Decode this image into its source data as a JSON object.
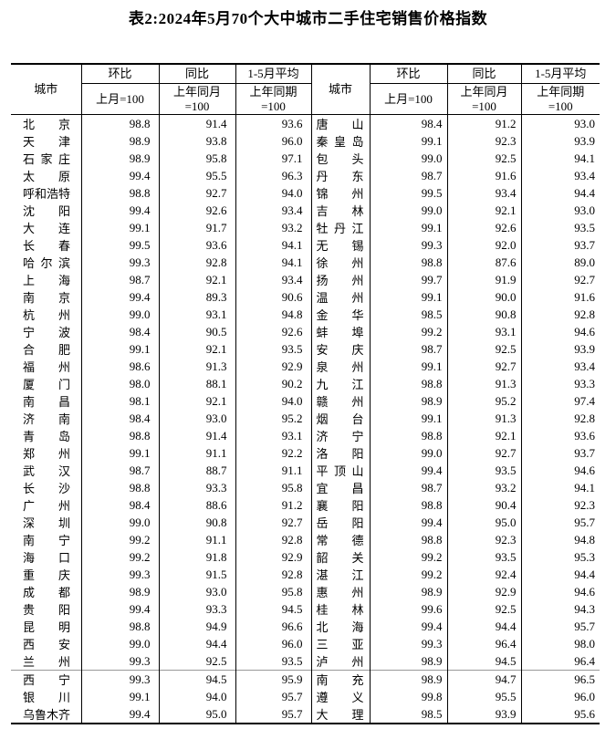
{
  "title": "表2:2024年5月70个大中城市二手住宅销售价格指数",
  "header": {
    "city_label": "城市",
    "columns": [
      {
        "top": "环比",
        "bottom_lines": [
          "上月=100"
        ]
      },
      {
        "top": "同比",
        "bottom_lines": [
          "上年同月",
          "=100"
        ]
      },
      {
        "top": "1-5月平均",
        "bottom_lines": [
          "上年同期",
          "=100"
        ]
      }
    ]
  },
  "separator_after_row": 32,
  "colors": {
    "background": "#ffffff",
    "text": "#000000",
    "border": "#000000",
    "page_break_line": "#999999"
  },
  "chart_data": {
    "type": "table",
    "title": "表2:2024年5月70个大中城市二手住宅销售价格指数",
    "column_headers": [
      "城市",
      "环比 上月=100",
      "同比 上年同月=100",
      "1-5月平均 上年同期=100"
    ],
    "left_rows": [
      [
        "北京",
        "98.8",
        "91.4",
        "93.6"
      ],
      [
        "天津",
        "98.9",
        "93.8",
        "96.0"
      ],
      [
        "石家庄",
        "98.9",
        "95.8",
        "97.1"
      ],
      [
        "太原",
        "99.4",
        "95.5",
        "96.3"
      ],
      [
        "呼和浩特",
        "98.8",
        "92.7",
        "94.0"
      ],
      [
        "沈阳",
        "99.4",
        "92.6",
        "93.4"
      ],
      [
        "大连",
        "99.1",
        "91.7",
        "93.2"
      ],
      [
        "长春",
        "99.5",
        "93.6",
        "94.1"
      ],
      [
        "哈尔滨",
        "99.3",
        "92.8",
        "94.1"
      ],
      [
        "上海",
        "98.7",
        "92.1",
        "93.4"
      ],
      [
        "南京",
        "99.4",
        "89.3",
        "90.6"
      ],
      [
        "杭州",
        "99.0",
        "93.1",
        "94.8"
      ],
      [
        "宁波",
        "98.4",
        "90.5",
        "92.6"
      ],
      [
        "合肥",
        "99.1",
        "92.1",
        "93.5"
      ],
      [
        "福州",
        "98.6",
        "91.3",
        "92.9"
      ],
      [
        "厦门",
        "98.0",
        "88.1",
        "90.2"
      ],
      [
        "南昌",
        "98.1",
        "92.1",
        "94.0"
      ],
      [
        "济南",
        "98.4",
        "93.0",
        "95.2"
      ],
      [
        "青岛",
        "98.8",
        "91.4",
        "93.1"
      ],
      [
        "郑州",
        "99.1",
        "91.1",
        "92.2"
      ],
      [
        "武汉",
        "98.7",
        "88.7",
        "91.1"
      ],
      [
        "长沙",
        "98.8",
        "93.3",
        "95.8"
      ],
      [
        "广州",
        "98.4",
        "88.6",
        "91.2"
      ],
      [
        "深圳",
        "99.0",
        "90.8",
        "92.7"
      ],
      [
        "南宁",
        "99.2",
        "91.1",
        "92.8"
      ],
      [
        "海口",
        "99.2",
        "91.8",
        "92.9"
      ],
      [
        "重庆",
        "99.3",
        "91.5",
        "92.8"
      ],
      [
        "成都",
        "98.9",
        "93.0",
        "95.8"
      ],
      [
        "贵阳",
        "99.4",
        "93.3",
        "94.5"
      ],
      [
        "昆明",
        "98.8",
        "94.9",
        "96.6"
      ],
      [
        "西安",
        "99.0",
        "94.4",
        "96.0"
      ],
      [
        "兰州",
        "99.3",
        "92.5",
        "93.5"
      ],
      [
        "西宁",
        "99.3",
        "94.5",
        "95.9"
      ],
      [
        "银川",
        "99.1",
        "94.0",
        "95.7"
      ],
      [
        "乌鲁木齐",
        "99.4",
        "95.0",
        "95.7"
      ]
    ],
    "right_rows": [
      [
        "唐山",
        "98.4",
        "91.2",
        "93.0"
      ],
      [
        "秦皇岛",
        "99.1",
        "92.3",
        "93.9"
      ],
      [
        "包头",
        "99.0",
        "92.5",
        "94.1"
      ],
      [
        "丹东",
        "98.7",
        "91.6",
        "93.4"
      ],
      [
        "锦州",
        "99.5",
        "93.4",
        "94.4"
      ],
      [
        "吉林",
        "99.0",
        "92.1",
        "93.0"
      ],
      [
        "牡丹江",
        "99.1",
        "92.6",
        "93.5"
      ],
      [
        "无锡",
        "99.3",
        "92.0",
        "93.7"
      ],
      [
        "徐州",
        "98.8",
        "87.6",
        "89.0"
      ],
      [
        "扬州",
        "99.7",
        "91.9",
        "92.7"
      ],
      [
        "温州",
        "99.1",
        "90.0",
        "91.6"
      ],
      [
        "金华",
        "98.5",
        "90.8",
        "92.8"
      ],
      [
        "蚌埠",
        "99.2",
        "93.1",
        "94.6"
      ],
      [
        "安庆",
        "98.7",
        "92.5",
        "93.9"
      ],
      [
        "泉州",
        "99.1",
        "92.7",
        "93.4"
      ],
      [
        "九江",
        "98.8",
        "91.3",
        "93.3"
      ],
      [
        "赣州",
        "98.9",
        "95.2",
        "97.4"
      ],
      [
        "烟台",
        "99.1",
        "91.3",
        "92.8"
      ],
      [
        "济宁",
        "98.8",
        "92.1",
        "93.6"
      ],
      [
        "洛阳",
        "99.0",
        "92.7",
        "93.7"
      ],
      [
        "平顶山",
        "99.4",
        "93.5",
        "94.6"
      ],
      [
        "宜昌",
        "98.7",
        "93.2",
        "94.1"
      ],
      [
        "襄阳",
        "98.8",
        "90.4",
        "92.3"
      ],
      [
        "岳阳",
        "99.4",
        "95.0",
        "95.7"
      ],
      [
        "常德",
        "98.8",
        "92.3",
        "94.8"
      ],
      [
        "韶关",
        "99.2",
        "93.5",
        "95.3"
      ],
      [
        "湛江",
        "99.2",
        "92.4",
        "94.4"
      ],
      [
        "惠州",
        "98.9",
        "92.9",
        "94.6"
      ],
      [
        "桂林",
        "99.6",
        "92.5",
        "94.3"
      ],
      [
        "北海",
        "99.4",
        "94.4",
        "95.7"
      ],
      [
        "三亚",
        "99.3",
        "96.4",
        "98.0"
      ],
      [
        "泸州",
        "98.9",
        "94.5",
        "96.4"
      ],
      [
        "南充",
        "98.9",
        "94.7",
        "96.5"
      ],
      [
        "遵义",
        "99.8",
        "95.5",
        "96.0"
      ],
      [
        "大理",
        "98.5",
        "93.9",
        "95.6"
      ]
    ]
  }
}
